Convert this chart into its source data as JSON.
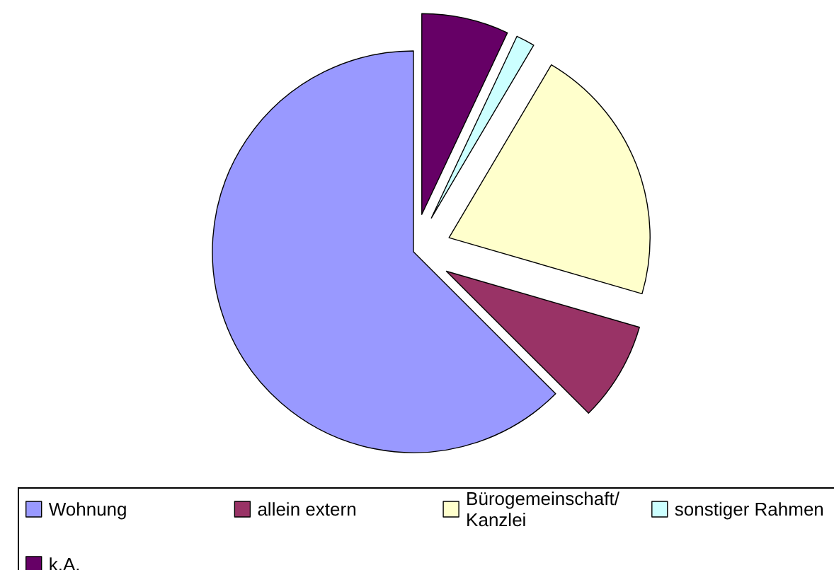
{
  "chart_data": {
    "type": "pie",
    "categories": [
      "Wohnung",
      "allein extern",
      "Bürogemeinschaft/ Kanzlei",
      "sonstiger Rahmen",
      "k.A."
    ],
    "values": [
      62.5,
      8,
      21,
      1.5,
      7
    ],
    "colors": [
      "#9999ff",
      "#993366",
      "#ffffcc",
      "#ccffff",
      "#660066"
    ],
    "legend": "bottom"
  }
}
